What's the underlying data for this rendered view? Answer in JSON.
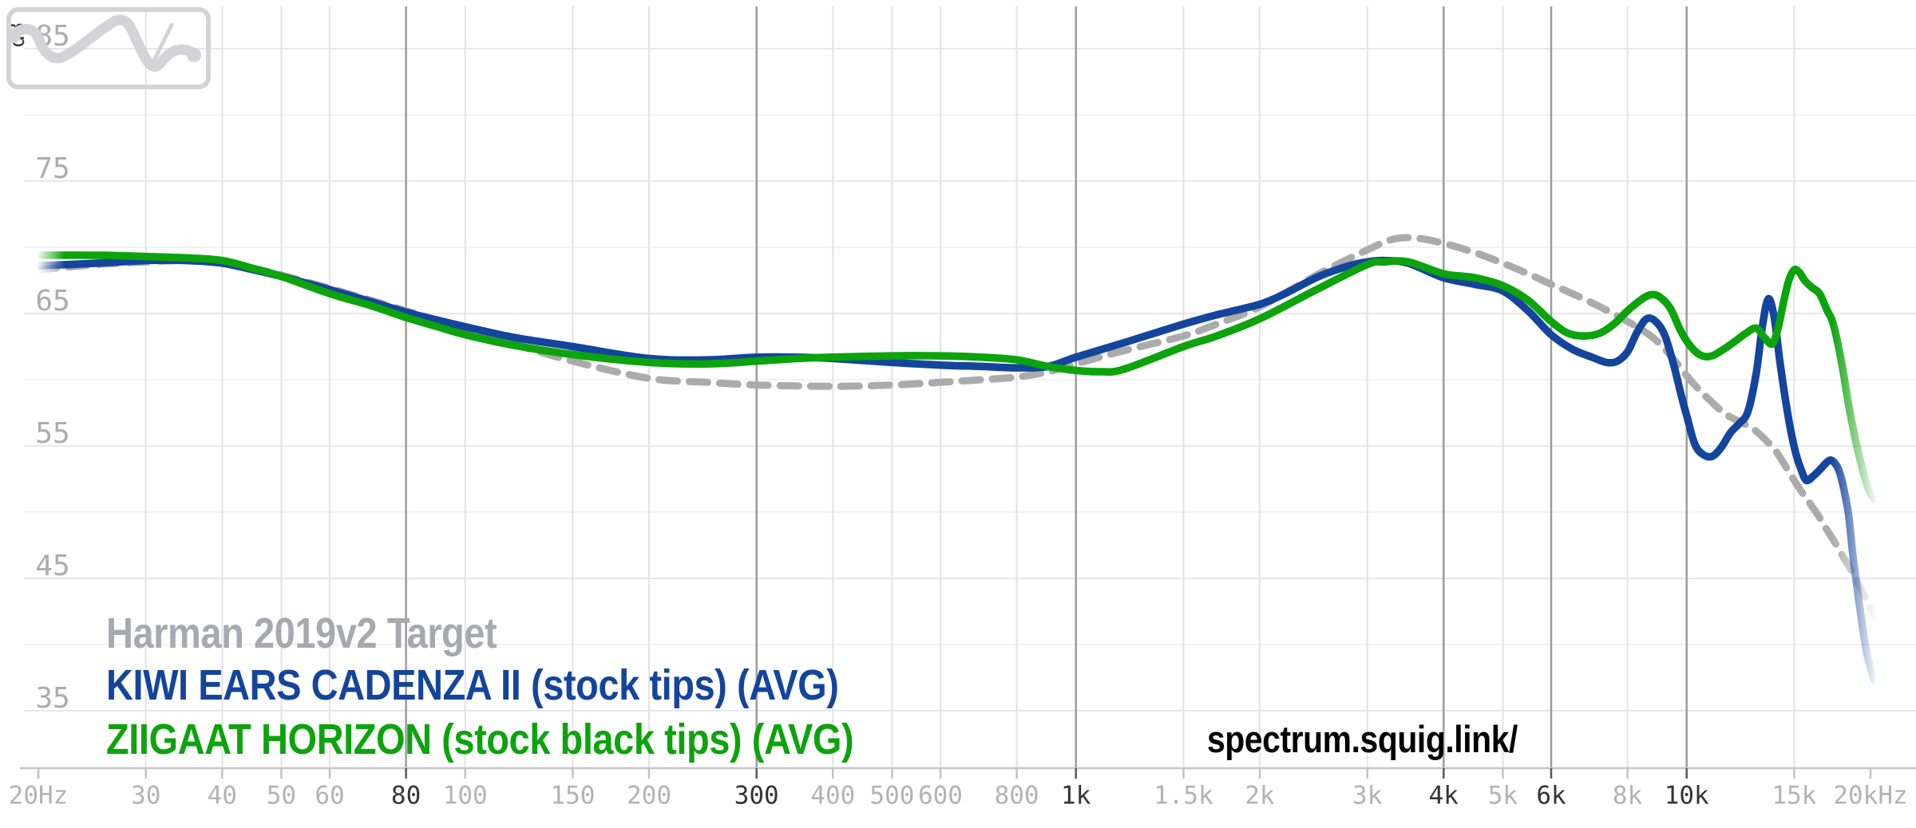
{
  "watermark": "spectrum.squig.link/",
  "y_axis_unit": "dB",
  "legend": [
    {
      "label": "Harman 2019v2 Target",
      "color": "#a8a8b1"
    },
    {
      "label": "KIWI EARS CADENZA II (stock tips) (AVG)",
      "color": "#14459c"
    },
    {
      "label": "ZIIGAAT HORIZON (stock black tips) (AVG)",
      "color": "#0ca30c"
    }
  ],
  "chart_data": {
    "type": "line",
    "x_scale": "log",
    "x_range_hz": [
      20,
      20000
    ],
    "y_range_db": [
      35,
      85
    ],
    "grid": true,
    "legend_position": "bottom-left",
    "colors": {
      "grid_minor_h": "#f2f2f4",
      "grid_major_h": "#e8e8eb",
      "grid_v_light": "#e3e3e6",
      "grid_v_emph": "#9c9c9f",
      "axis_line": "#c6c6c9",
      "tick_light": "#c2c2c5",
      "tick_dark": "#58585c",
      "label_light": "#b3b3b6",
      "label_dark": "#343437",
      "y_label": "#acacb0",
      "db_unit_label": "#38383b",
      "watermark": "#c8c8cc",
      "logo": "#d4d4d8"
    },
    "x_ticks": [
      {
        "f": 20,
        "label": "20Hz",
        "emph": false,
        "grid": false
      },
      {
        "f": 30,
        "label": "30",
        "emph": false,
        "grid": true
      },
      {
        "f": 40,
        "label": "40",
        "emph": false,
        "grid": true
      },
      {
        "f": 50,
        "label": "50",
        "emph": false,
        "grid": true
      },
      {
        "f": 60,
        "label": "60",
        "emph": false,
        "grid": true
      },
      {
        "f": 80,
        "label": "80",
        "emph": true,
        "grid": true
      },
      {
        "f": 100,
        "label": "100",
        "emph": false,
        "grid": true
      },
      {
        "f": 150,
        "label": "150",
        "emph": false,
        "grid": true
      },
      {
        "f": 200,
        "label": "200",
        "emph": false,
        "grid": true
      },
      {
        "f": 300,
        "label": "300",
        "emph": true,
        "grid": true
      },
      {
        "f": 400,
        "label": "400",
        "emph": false,
        "grid": true
      },
      {
        "f": 500,
        "label": "500",
        "emph": false,
        "grid": true
      },
      {
        "f": 600,
        "label": "600",
        "emph": false,
        "grid": true
      },
      {
        "f": 800,
        "label": "800",
        "emph": false,
        "grid": true
      },
      {
        "f": 1000,
        "label": "1k",
        "emph": true,
        "grid": true
      },
      {
        "f": 1500,
        "label": "1.5k",
        "emph": false,
        "grid": true
      },
      {
        "f": 2000,
        "label": "2k",
        "emph": false,
        "grid": true
      },
      {
        "f": 3000,
        "label": "3k",
        "emph": false,
        "grid": true
      },
      {
        "f": 4000,
        "label": "4k",
        "emph": true,
        "grid": true
      },
      {
        "f": 5000,
        "label": "5k",
        "emph": false,
        "grid": true
      },
      {
        "f": 6000,
        "label": "6k",
        "emph": true,
        "grid": true
      },
      {
        "f": 8000,
        "label": "8k",
        "emph": false,
        "grid": true
      },
      {
        "f": 10000,
        "label": "10k",
        "emph": true,
        "grid": true
      },
      {
        "f": 15000,
        "label": "15k",
        "emph": false,
        "grid": true
      },
      {
        "f": 20000,
        "label": "20kHz",
        "emph": false,
        "grid": false
      }
    ],
    "y_ticks_labeled": [
      85,
      75,
      65,
      55,
      45,
      35
    ],
    "y_ticks_minor": [
      80,
      70,
      60,
      50,
      40
    ],
    "series": [
      {
        "name": "Harman 2019v2 Target",
        "color": "#ababab",
        "dashed": true,
        "points": [
          [
            20,
            68.3
          ],
          [
            25,
            68.7
          ],
          [
            30,
            68.9
          ],
          [
            35,
            69.0
          ],
          [
            40,
            68.9
          ],
          [
            45,
            68.4
          ],
          [
            50,
            67.9
          ],
          [
            60,
            66.9
          ],
          [
            70,
            66.0
          ],
          [
            80,
            65.2
          ],
          [
            90,
            64.5
          ],
          [
            100,
            63.9
          ],
          [
            120,
            62.7
          ],
          [
            150,
            61.4
          ],
          [
            200,
            60.1
          ],
          [
            250,
            59.8
          ],
          [
            300,
            59.6
          ],
          [
            400,
            59.5
          ],
          [
            500,
            59.6
          ],
          [
            600,
            59.8
          ],
          [
            700,
            60.0
          ],
          [
            800,
            60.2
          ],
          [
            900,
            60.6
          ],
          [
            1000,
            61.2
          ],
          [
            1200,
            62.2
          ],
          [
            1500,
            63.3
          ],
          [
            1700,
            64.2
          ],
          [
            2000,
            65.5
          ],
          [
            2500,
            68.0
          ],
          [
            3000,
            69.8
          ],
          [
            3300,
            70.6
          ],
          [
            3600,
            70.7
          ],
          [
            4000,
            70.3
          ],
          [
            4500,
            69.6
          ],
          [
            5000,
            68.8
          ],
          [
            5500,
            68.0
          ],
          [
            6000,
            67.2
          ],
          [
            6500,
            66.5
          ],
          [
            7000,
            65.8
          ],
          [
            7500,
            65.1
          ],
          [
            8000,
            64.4
          ],
          [
            8500,
            63.7
          ],
          [
            9000,
            62.8
          ],
          [
            9500,
            61.6
          ],
          [
            10000,
            60.3
          ],
          [
            10500,
            59.2
          ],
          [
            11000,
            58.3
          ],
          [
            11500,
            57.5
          ],
          [
            12000,
            57.0
          ],
          [
            12500,
            56.6
          ],
          [
            13000,
            56.1
          ],
          [
            13500,
            55.4
          ],
          [
            14000,
            54.6
          ],
          [
            14500,
            53.5
          ],
          [
            15000,
            52.4
          ],
          [
            15500,
            51.4
          ],
          [
            16000,
            50.5
          ],
          [
            16500,
            49.6
          ],
          [
            17000,
            48.6
          ],
          [
            17500,
            47.7
          ],
          [
            18000,
            46.7
          ],
          [
            18500,
            45.8
          ],
          [
            19000,
            44.8
          ],
          [
            19500,
            43.8
          ],
          [
            20000,
            42.8
          ],
          [
            20400,
            42.0
          ]
        ]
      },
      {
        "name": "KIWI EARS CADENZA II (stock tips) (AVG)",
        "color": "#14459c",
        "dashed": false,
        "points": [
          [
            20,
            68.6
          ],
          [
            25,
            68.8
          ],
          [
            30,
            69.0
          ],
          [
            35,
            69.0
          ],
          [
            40,
            68.8
          ],
          [
            45,
            68.3
          ],
          [
            50,
            67.8
          ],
          [
            60,
            66.8
          ],
          [
            70,
            65.9
          ],
          [
            80,
            65.1
          ],
          [
            90,
            64.5
          ],
          [
            100,
            64.0
          ],
          [
            120,
            63.2
          ],
          [
            150,
            62.5
          ],
          [
            200,
            61.6
          ],
          [
            250,
            61.5
          ],
          [
            300,
            61.7
          ],
          [
            350,
            61.7
          ],
          [
            400,
            61.6
          ],
          [
            500,
            61.3
          ],
          [
            600,
            61.1
          ],
          [
            700,
            61.0
          ],
          [
            800,
            60.9
          ],
          [
            900,
            61.0
          ],
          [
            1000,
            61.7
          ],
          [
            1200,
            62.8
          ],
          [
            1500,
            64.2
          ],
          [
            1700,
            64.9
          ],
          [
            2000,
            65.7
          ],
          [
            2200,
            66.5
          ],
          [
            2500,
            67.8
          ],
          [
            2800,
            68.6
          ],
          [
            3000,
            68.9
          ],
          [
            3200,
            69.0
          ],
          [
            3500,
            68.8
          ],
          [
            4000,
            67.7
          ],
          [
            4500,
            67.2
          ],
          [
            5000,
            66.7
          ],
          [
            5500,
            65.2
          ],
          [
            6000,
            63.4
          ],
          [
            6500,
            62.3
          ],
          [
            7000,
            61.7
          ],
          [
            7400,
            61.3
          ],
          [
            7700,
            61.4
          ],
          [
            8000,
            62.1
          ],
          [
            8300,
            63.6
          ],
          [
            8600,
            64.6
          ],
          [
            8900,
            64.4
          ],
          [
            9200,
            63.4
          ],
          [
            9500,
            61.3
          ],
          [
            9800,
            58.8
          ],
          [
            10000,
            57.3
          ],
          [
            10300,
            55.2
          ],
          [
            10600,
            54.4
          ],
          [
            11000,
            54.2
          ],
          [
            11400,
            54.9
          ],
          [
            11800,
            56.0
          ],
          [
            12200,
            56.7
          ],
          [
            12600,
            57.6
          ],
          [
            13000,
            60.5
          ],
          [
            13300,
            64.0
          ],
          [
            13600,
            66.1
          ],
          [
            13900,
            64.8
          ],
          [
            14200,
            61.5
          ],
          [
            14500,
            58.6
          ],
          [
            14800,
            56.2
          ],
          [
            15100,
            54.4
          ],
          [
            15400,
            53.2
          ],
          [
            15700,
            52.4
          ],
          [
            16100,
            52.7
          ],
          [
            16600,
            53.3
          ],
          [
            17000,
            53.8
          ],
          [
            17300,
            53.9
          ],
          [
            17700,
            53.3
          ],
          [
            18000,
            52.2
          ],
          [
            18400,
            49.9
          ],
          [
            18700,
            46.9
          ],
          [
            19000,
            44.4
          ],
          [
            19400,
            41.4
          ],
          [
            19800,
            39.0
          ],
          [
            20300,
            37.3
          ]
        ]
      },
      {
        "name": "ZIIGAAT HORIZON (stock black tips) (AVG)",
        "color": "#0ca30c",
        "dashed": false,
        "points": [
          [
            20,
            69.4
          ],
          [
            25,
            69.4
          ],
          [
            30,
            69.3
          ],
          [
            35,
            69.2
          ],
          [
            40,
            69.0
          ],
          [
            45,
            68.4
          ],
          [
            50,
            67.8
          ],
          [
            60,
            66.5
          ],
          [
            70,
            65.6
          ],
          [
            80,
            64.7
          ],
          [
            90,
            64.0
          ],
          [
            100,
            63.4
          ],
          [
            120,
            62.6
          ],
          [
            150,
            61.9
          ],
          [
            200,
            61.3
          ],
          [
            250,
            61.2
          ],
          [
            300,
            61.4
          ],
          [
            350,
            61.6
          ],
          [
            400,
            61.7
          ],
          [
            500,
            61.8
          ],
          [
            600,
            61.8
          ],
          [
            700,
            61.7
          ],
          [
            800,
            61.5
          ],
          [
            900,
            61.0
          ],
          [
            1000,
            60.7
          ],
          [
            1100,
            60.6
          ],
          [
            1200,
            60.8
          ],
          [
            1500,
            62.5
          ],
          [
            1700,
            63.3
          ],
          [
            2000,
            64.6
          ],
          [
            2500,
            66.9
          ],
          [
            3000,
            68.7
          ],
          [
            3200,
            68.9
          ],
          [
            3500,
            68.9
          ],
          [
            4000,
            68.0
          ],
          [
            4500,
            67.7
          ],
          [
            5000,
            67.1
          ],
          [
            5500,
            66.0
          ],
          [
            6000,
            64.4
          ],
          [
            6400,
            63.5
          ],
          [
            6800,
            63.3
          ],
          [
            7200,
            63.5
          ],
          [
            7600,
            64.2
          ],
          [
            8000,
            65.2
          ],
          [
            8400,
            66.0
          ],
          [
            8700,
            66.4
          ],
          [
            9000,
            66.3
          ],
          [
            9400,
            65.4
          ],
          [
            9800,
            63.6
          ],
          [
            10200,
            62.4
          ],
          [
            10600,
            61.8
          ],
          [
            11000,
            61.8
          ],
          [
            11500,
            62.3
          ],
          [
            12000,
            62.9
          ],
          [
            12500,
            63.5
          ],
          [
            13000,
            63.9
          ],
          [
            13400,
            63.2
          ],
          [
            13800,
            62.7
          ],
          [
            14100,
            63.8
          ],
          [
            14400,
            65.8
          ],
          [
            14700,
            67.5
          ],
          [
            15000,
            68.3
          ],
          [
            15300,
            68.1
          ],
          [
            15600,
            67.5
          ],
          [
            16000,
            67.0
          ],
          [
            16500,
            66.5
          ],
          [
            17000,
            65.2
          ],
          [
            17300,
            64.5
          ],
          [
            17600,
            63.2
          ],
          [
            18000,
            60.9
          ],
          [
            18400,
            58.2
          ],
          [
            18800,
            56.0
          ],
          [
            19200,
            54.1
          ],
          [
            19600,
            52.5
          ],
          [
            20000,
            51.4
          ],
          [
            20400,
            50.9
          ]
        ]
      }
    ]
  }
}
